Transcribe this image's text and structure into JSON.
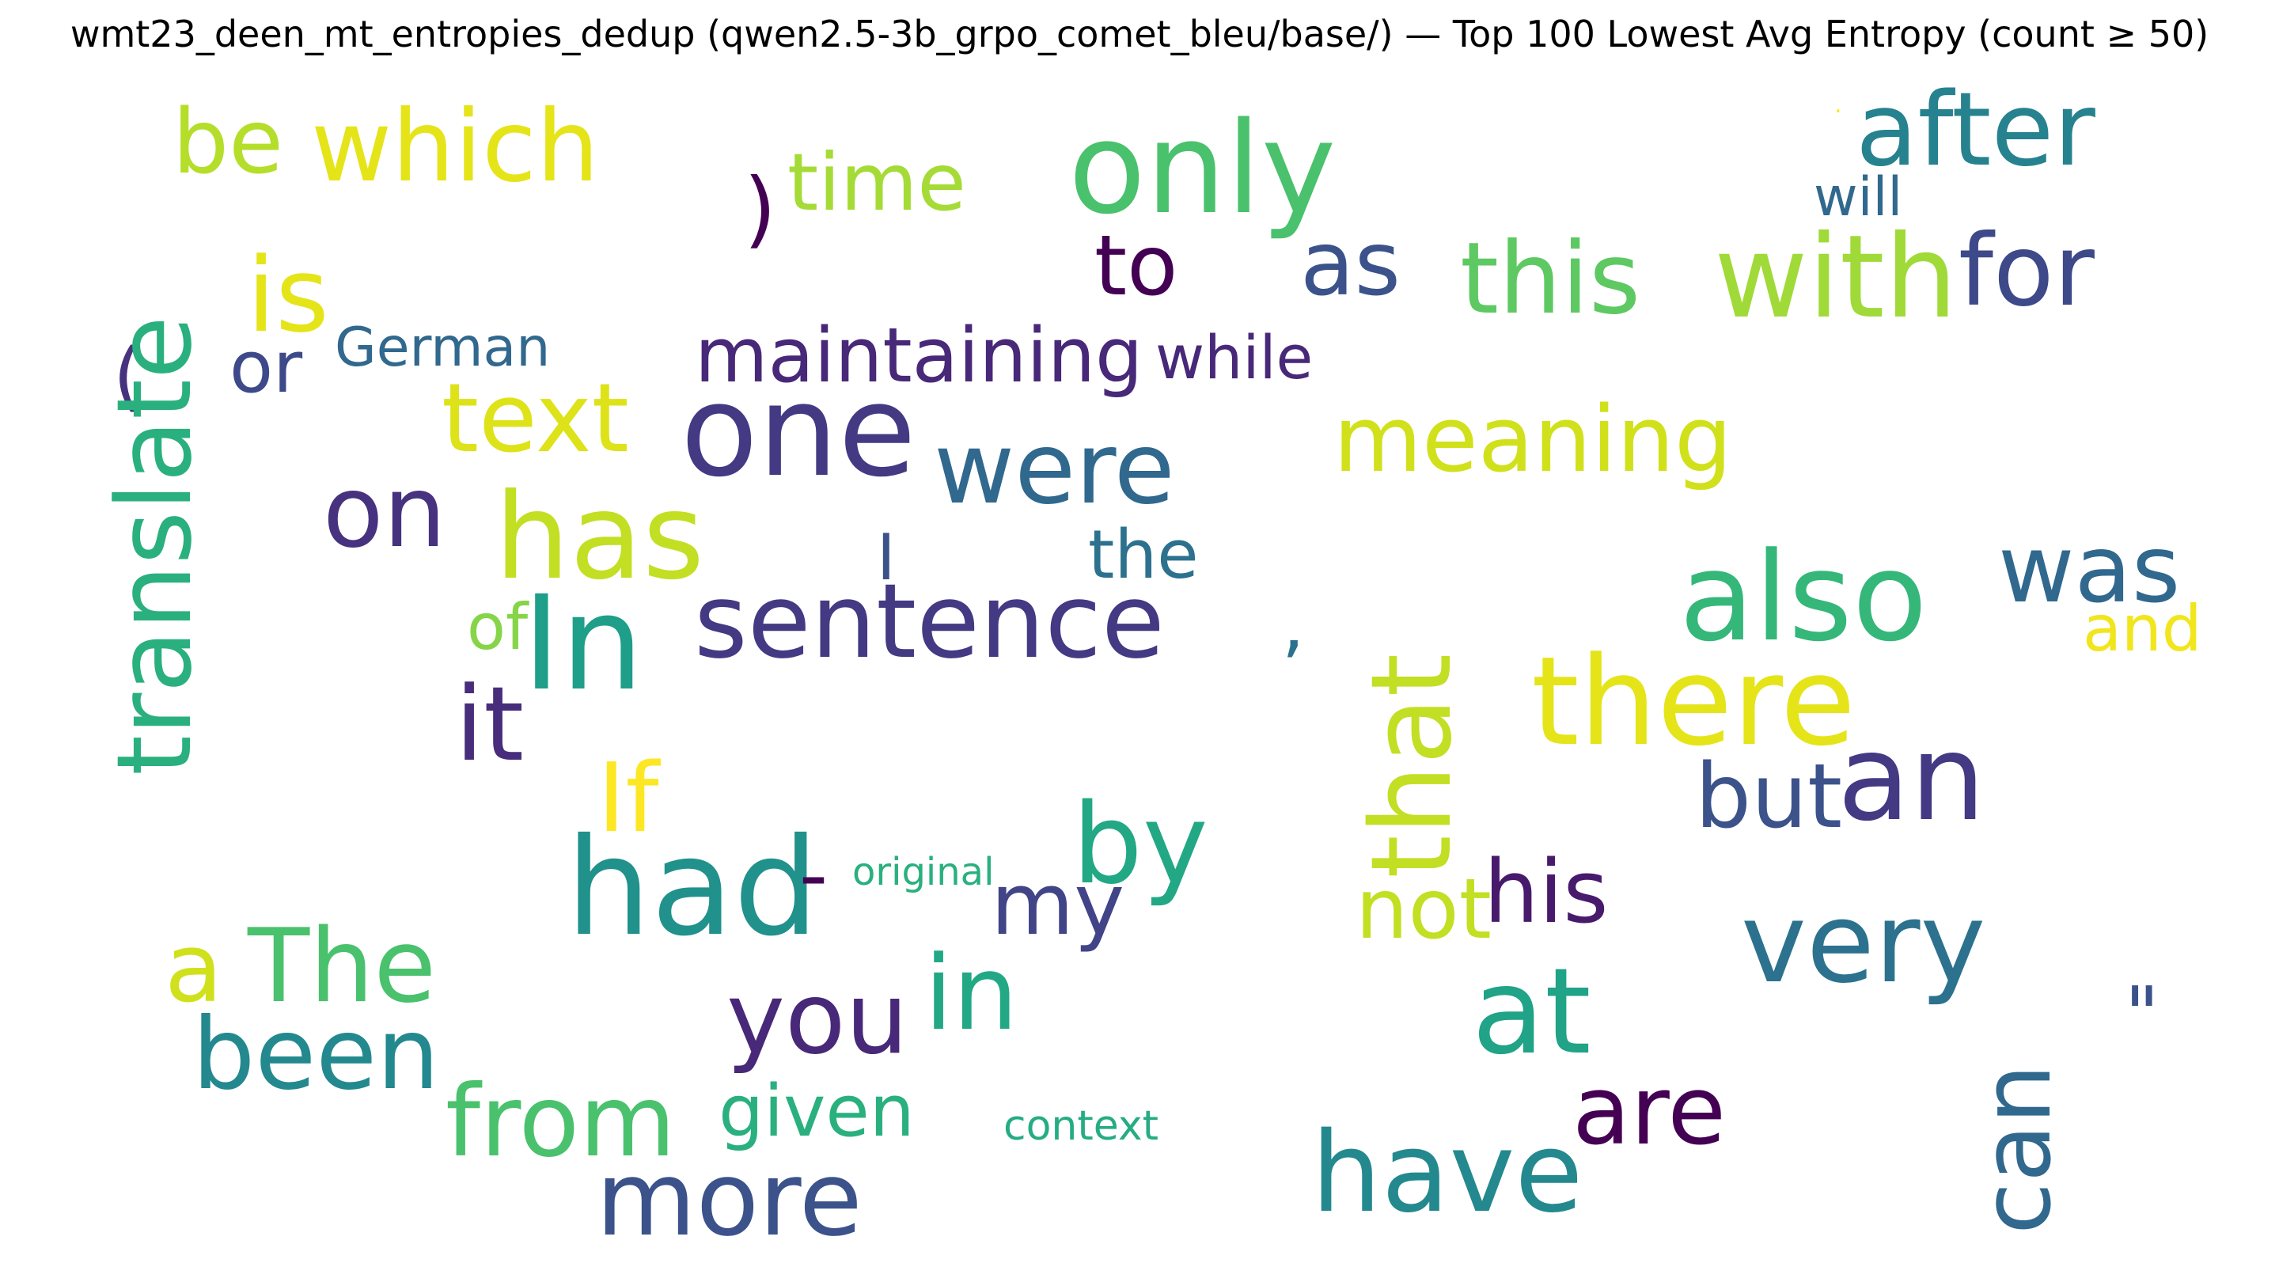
{
  "chart_data": {
    "type": "wordcloud",
    "title": "wmt23_deen_mt_entropies_dedup (qwen2.5-3b_grpo_comet_bleu/base/) — Top 100 Lowest Avg Entropy (count ≥ 50)",
    "colormap": "viridis",
    "words": [
      {
        "text": "be",
        "color": "#b5de2b"
      },
      {
        "text": "which",
        "color": "#e5e419"
      },
      {
        "text": ")",
        "color": "#440154"
      },
      {
        "text": "time",
        "color": "#a5db36"
      },
      {
        "text": "only",
        "color": "#4ac16d"
      },
      {
        "text": ".",
        "color": "#fde725"
      },
      {
        "text": "after",
        "color": "#26828e"
      },
      {
        "text": "will",
        "color": "#31688e"
      },
      {
        "text": "is",
        "color": "#e5e419"
      },
      {
        "text": "to",
        "color": "#440154"
      },
      {
        "text": "as",
        "color": "#3b528b"
      },
      {
        "text": "this",
        "color": "#5ec962"
      },
      {
        "text": "with",
        "color": "#a0da39"
      },
      {
        "text": "for",
        "color": "#3e4989"
      },
      {
        "text": "(",
        "color": "#46327e"
      },
      {
        "text": "or",
        "color": "#3e4989"
      },
      {
        "text": "German",
        "color": "#31688e"
      },
      {
        "text": "maintaining",
        "color": "#482878"
      },
      {
        "text": "while",
        "color": "#482878"
      },
      {
        "text": "text",
        "color": "#dde318"
      },
      {
        "text": "one",
        "color": "#443983"
      },
      {
        "text": "were",
        "color": "#31688e"
      },
      {
        "text": "meaning",
        "color": "#d0e11c"
      },
      {
        "text": "on",
        "color": "#46327e"
      },
      {
        "text": "has",
        "color": "#c2df23"
      },
      {
        "text": "I",
        "color": "#3b528b"
      },
      {
        "text": "the",
        "color": "#2c728e"
      },
      {
        "text": "translate",
        "color": "#2ab07f"
      },
      {
        "text": "of",
        "color": "#86d549"
      },
      {
        "text": "In",
        "color": "#1f9e89"
      },
      {
        "text": "sentence",
        "color": "#443983"
      },
      {
        "text": ",",
        "color": "#2c728e"
      },
      {
        "text": "also",
        "color": "#35b779"
      },
      {
        "text": "was",
        "color": "#31688e"
      },
      {
        "text": "and",
        "color": "#f1e51d"
      },
      {
        "text": "it",
        "color": "#472d7b"
      },
      {
        "text": "there",
        "color": "#e5e419"
      },
      {
        "text": "that",
        "color": "#c2df23"
      },
      {
        "text": "If",
        "color": "#fde725"
      },
      {
        "text": "but",
        "color": "#3b528b"
      },
      {
        "text": "an",
        "color": "#443983"
      },
      {
        "text": "by",
        "color": "#22a884"
      },
      {
        "text": "had",
        "color": "#21918c"
      },
      {
        "text": "-",
        "color": "#440154"
      },
      {
        "text": "original",
        "color": "#2ab07f"
      },
      {
        "text": "my",
        "color": "#414487"
      },
      {
        "text": "not",
        "color": "#c2df23"
      },
      {
        "text": "his",
        "color": "#481a6c"
      },
      {
        "text": "a",
        "color": "#d0e11c"
      },
      {
        "text": "The",
        "color": "#4ac16d"
      },
      {
        "text": "very",
        "color": "#2c728e"
      },
      {
        "text": "in",
        "color": "#22a884"
      },
      {
        "text": "you",
        "color": "#482878"
      },
      {
        "text": "at",
        "color": "#20a386"
      },
      {
        "text": "\"",
        "color": "#3b528b"
      },
      {
        "text": "been",
        "color": "#23898e"
      },
      {
        "text": "from",
        "color": "#4ac16d"
      },
      {
        "text": "given",
        "color": "#2ab07f"
      },
      {
        "text": "context",
        "color": "#25ac82"
      },
      {
        "text": "are",
        "color": "#440154"
      },
      {
        "text": "have",
        "color": "#23898e"
      },
      {
        "text": "can",
        "color": "#31688e"
      },
      {
        "text": "more",
        "color": "#3b528b"
      }
    ]
  }
}
